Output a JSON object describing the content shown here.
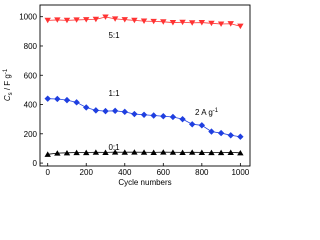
{
  "chart_data": {
    "type": "line",
    "x_label": "Cycle numbers",
    "y_label": {
      "main": "C",
      "sub": "s",
      "rest": " / F g",
      "sup": "-1"
    },
    "annotations": [
      {
        "text": "5:1"
      },
      {
        "text": "1:1"
      },
      {
        "text": "0:1"
      },
      {
        "text": "2 A g",
        "sup": "-1"
      }
    ],
    "x": [
      0,
      50,
      100,
      150,
      200,
      250,
      300,
      350,
      400,
      450,
      500,
      550,
      600,
      650,
      700,
      750,
      800,
      850,
      900,
      950,
      1000
    ],
    "series": [
      {
        "name": "5:1",
        "color": "#ff3333",
        "marker": "triangle-down",
        "values": [
          975,
          978,
          975,
          978,
          980,
          982,
          998,
          985,
          980,
          975,
          970,
          968,
          965,
          960,
          962,
          958,
          960,
          955,
          950,
          952,
          935
        ]
      },
      {
        "name": "1:1",
        "color": "#1f3fe0",
        "marker": "diamond",
        "values": [
          440,
          438,
          430,
          415,
          380,
          360,
          355,
          357,
          350,
          335,
          330,
          325,
          320,
          315,
          300,
          265,
          258,
          215,
          205,
          190,
          180
        ]
      },
      {
        "name": "0:1",
        "color": "#000000",
        "marker": "triangle-up",
        "values": [
          60,
          68,
          70,
          72,
          72,
          74,
          73,
          75,
          74,
          75,
          74,
          73,
          75,
          74,
          73,
          74,
          73,
          72,
          72,
          73,
          70
        ]
      }
    ],
    "xlim": [
      -40,
      1050
    ],
    "ylim": [
      -20,
      1080
    ],
    "xticks": [
      0,
      200,
      400,
      600,
      800,
      1000
    ],
    "yticks": [
      0,
      200,
      400,
      600,
      800,
      1000
    ]
  }
}
